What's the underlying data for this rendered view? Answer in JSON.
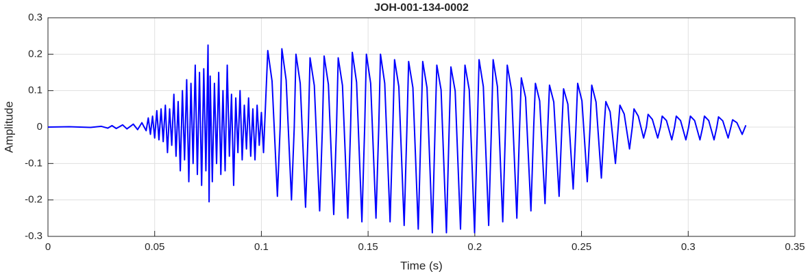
{
  "chart_data": {
    "type": "line",
    "title": "JOH-001-134-0002",
    "x_label": "Time (s)",
    "y_label": "Amplitude",
    "color": "#0000ff",
    "grid": true,
    "xlim": [
      0,
      0.35
    ],
    "xticks": [
      0,
      0.05,
      0.1,
      0.15,
      0.2,
      0.25,
      0.3,
      0.35
    ],
    "ylim": [
      -0.3,
      0.3
    ],
    "yticks": [
      -0.3,
      -0.2,
      -0.1,
      0,
      0.1,
      0.2,
      0.3
    ],
    "x": [
      0,
      0.01,
      0.02,
      0.025,
      0.028,
      0.03,
      0.032,
      0.035,
      0.037,
      0.04,
      0.042,
      0.044,
      0.046,
      0.047,
      0.048,
      0.049,
      0.05,
      0.051,
      0.052,
      0.053,
      0.054,
      0.055,
      0.056,
      0.057,
      0.058,
      0.059,
      0.06,
      0.061,
      0.062,
      0.063,
      0.064,
      0.065,
      0.066,
      0.067,
      0.068,
      0.069,
      0.07,
      0.071,
      0.072,
      0.073,
      0.074,
      0.075,
      0.0755,
      0.076,
      0.077,
      0.078,
      0.079,
      0.08,
      0.081,
      0.082,
      0.083,
      0.084,
      0.085,
      0.086,
      0.087,
      0.088,
      0.089,
      0.09,
      0.091,
      0.092,
      0.093,
      0.094,
      0.095,
      0.096,
      0.097,
      0.098,
      0.099,
      0.1,
      0.101,
      0.103,
      0.105,
      0.1075,
      0.1088,
      0.1096,
      0.1116,
      0.1141,
      0.1154,
      0.1162,
      0.1182,
      0.1207,
      0.122,
      0.1228,
      0.1248,
      0.1273,
      0.1286,
      0.1294,
      0.1314,
      0.1339,
      0.1352,
      0.136,
      0.138,
      0.1405,
      0.1418,
      0.1426,
      0.1446,
      0.1471,
      0.1484,
      0.1492,
      0.1512,
      0.1537,
      0.155,
      0.1558,
      0.1578,
      0.1603,
      0.1616,
      0.1624,
      0.1644,
      0.1669,
      0.1682,
      0.169,
      0.171,
      0.1735,
      0.1748,
      0.1756,
      0.1776,
      0.1801,
      0.1814,
      0.1822,
      0.1842,
      0.1867,
      0.188,
      0.1888,
      0.1908,
      0.1933,
      0.1946,
      0.1954,
      0.1974,
      0.1999,
      0.2012,
      0.202,
      0.204,
      0.2065,
      0.2078,
      0.2086,
      0.2106,
      0.2131,
      0.2144,
      0.2152,
      0.2172,
      0.2197,
      0.221,
      0.2218,
      0.2238,
      0.2263,
      0.2276,
      0.2284,
      0.2304,
      0.2329,
      0.2342,
      0.235,
      0.237,
      0.2395,
      0.2408,
      0.2416,
      0.2436,
      0.2461,
      0.2474,
      0.2482,
      0.2502,
      0.2527,
      0.254,
      0.2548,
      0.2568,
      0.2593,
      0.2606,
      0.2614,
      0.2634,
      0.2659,
      0.2672,
      0.268,
      0.27,
      0.2725,
      0.2738,
      0.2746,
      0.2766,
      0.2791,
      0.2804,
      0.2812,
      0.2832,
      0.2857,
      0.287,
      0.2878,
      0.2898,
      0.2923,
      0.2936,
      0.2944,
      0.2964,
      0.2989,
      0.3002,
      0.301,
      0.303,
      0.3055,
      0.3068,
      0.3076,
      0.3096,
      0.3121,
      0.3134,
      0.3142,
      0.3162,
      0.3187,
      0.32,
      0.3208,
      0.3228,
      0.3253,
      0.327
    ],
    "values": [
      0,
      0.001,
      -0.001,
      0.002,
      -0.003,
      0.004,
      -0.004,
      0.006,
      -0.005,
      0.008,
      -0.007,
      0.012,
      -0.01,
      0.025,
      -0.02,
      0.03,
      -0.03,
      0.045,
      -0.035,
      0.05,
      -0.04,
      0.06,
      -0.07,
      0.05,
      -0.05,
      0.09,
      -0.08,
      0.07,
      -0.12,
      0.1,
      -0.09,
      0.13,
      -0.15,
      0.12,
      -0.1,
      0.17,
      -0.13,
      0.15,
      -0.16,
      0.16,
      -0.12,
      0.225,
      -0.205,
      0.14,
      -0.15,
      0.12,
      -0.1,
      0.15,
      -0.13,
      0.1,
      -0.12,
      0.17,
      -0.08,
      0.09,
      -0.16,
      0.08,
      -0.07,
      0.1,
      -0.09,
      0.06,
      -0.06,
      0.08,
      -0.08,
      0.05,
      -0.09,
      0.06,
      -0.05,
      0.04,
      -0.07,
      0.21,
      0.126,
      -0.19,
      0,
      0.215,
      0.129,
      -0.2,
      0,
      0.2,
      0.12,
      -0.22,
      0,
      0.19,
      0.114,
      -0.23,
      0,
      0.195,
      0.117,
      -0.24,
      0,
      0.19,
      0.114,
      -0.25,
      0,
      0.205,
      0.123,
      -0.26,
      0,
      0.2,
      0.12,
      -0.25,
      0,
      0.2,
      0.12,
      -0.26,
      0,
      0.185,
      0.111,
      -0.27,
      0,
      0.18,
      0.108,
      -0.28,
      0,
      0.18,
      0.108,
      -0.29,
      0,
      0.17,
      0.102,
      -0.29,
      0,
      0.165,
      0.099,
      -0.28,
      0,
      0.17,
      0.102,
      -0.29,
      0,
      0.185,
      0.111,
      -0.27,
      0,
      0.185,
      0.111,
      -0.26,
      0,
      0.17,
      0.102,
      -0.25,
      0,
      0.135,
      0.081,
      -0.23,
      0,
      0.12,
      0.072,
      -0.21,
      0,
      0.115,
      0.069,
      -0.19,
      0,
      0.105,
      0.063,
      -0.17,
      0,
      0.12,
      0.072,
      -0.15,
      0,
      0.115,
      0.069,
      -0.14,
      0,
      0.07,
      0.042,
      -0.1,
      0,
      0.06,
      0.036,
      -0.06,
      0,
      0.05,
      0.03,
      -0.03,
      0,
      0.035,
      0.021,
      -0.03,
      0,
      0.03,
      0.018,
      -0.035,
      0,
      0.03,
      0.018,
      -0.035,
      0,
      0.03,
      0.018,
      -0.035,
      0,
      0.03,
      0.018,
      -0.035,
      0,
      0.028,
      0.017,
      -0.03,
      0,
      0.02,
      0.012,
      -0.02,
      0.005
    ]
  }
}
